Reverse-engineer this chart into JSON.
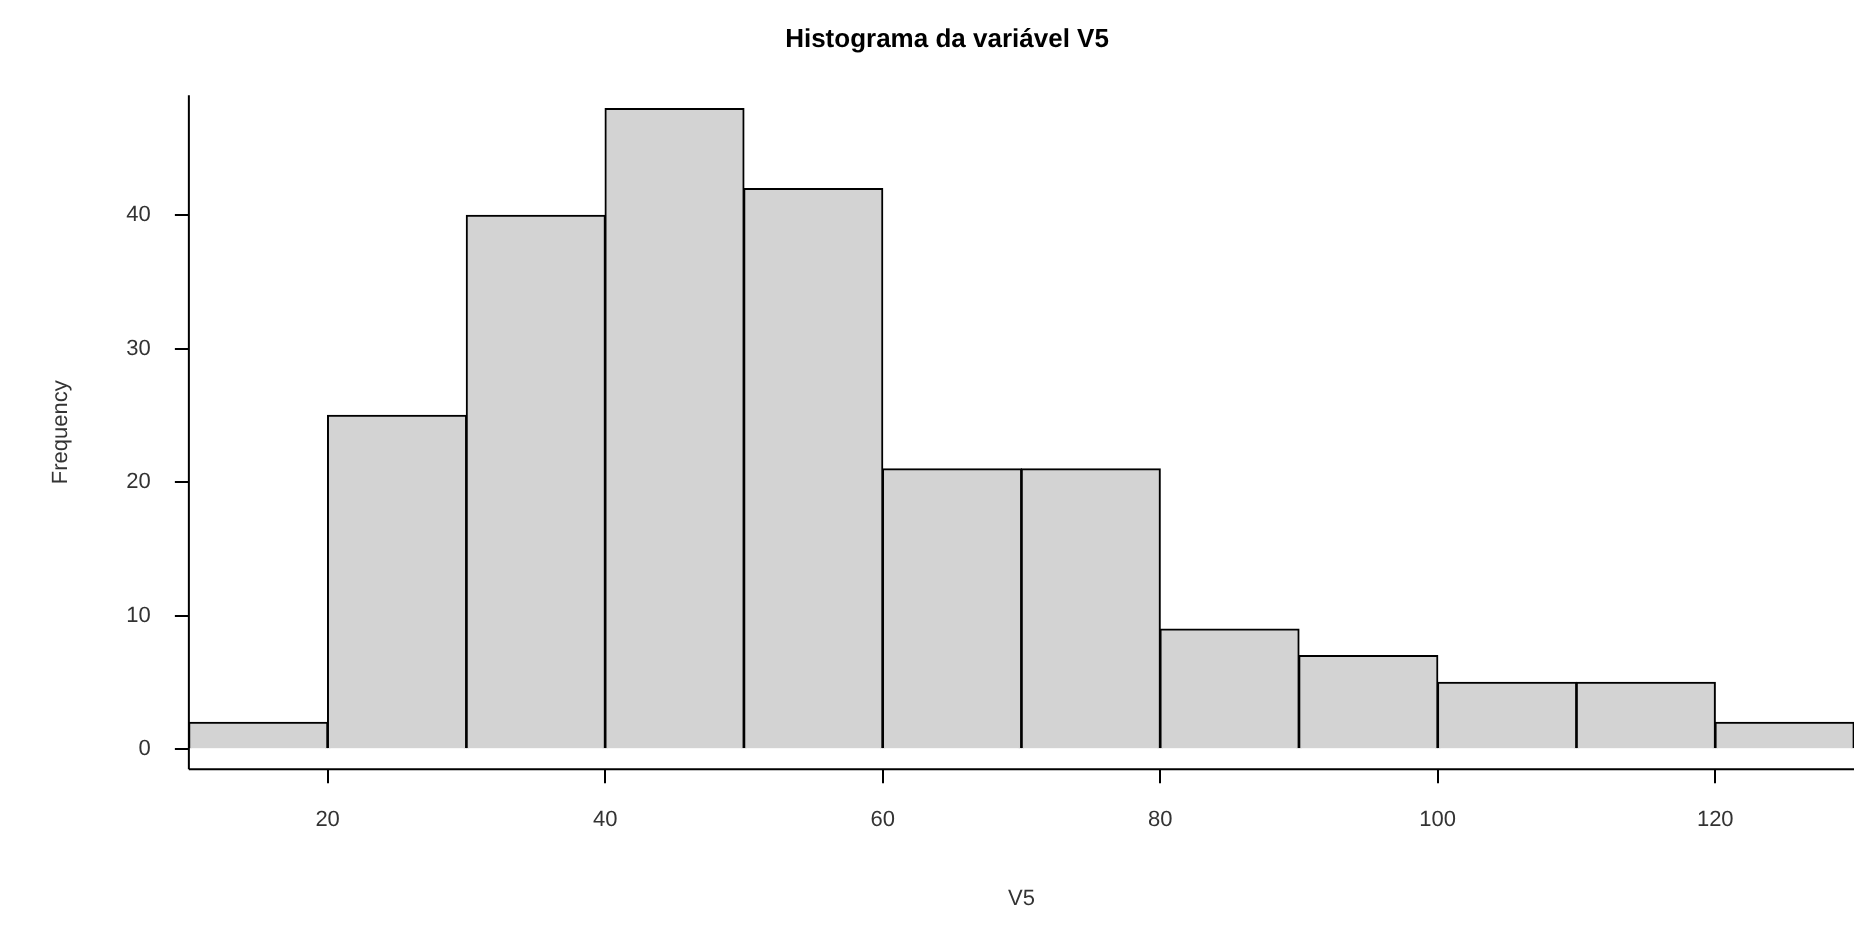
{
  "chart_data": {
    "type": "histogram",
    "title": "Histograma da variável V5",
    "xlabel": "V5",
    "ylabel": "Frequency",
    "bins": [
      10,
      20,
      30,
      40,
      50,
      60,
      70,
      80,
      90,
      100,
      110,
      120,
      130
    ],
    "values": [
      2,
      25,
      40,
      48,
      42,
      21,
      21,
      9,
      7,
      5,
      5,
      2
    ],
    "color": "#d3d3d3",
    "xlim": [
      10,
      130
    ],
    "xticks": [
      20,
      40,
      60,
      80,
      100,
      120
    ],
    "ylim": [
      -1.5,
      49
    ],
    "yticks": [
      0,
      10,
      20,
      30,
      40
    ],
    "grid": false,
    "legend": false
  }
}
